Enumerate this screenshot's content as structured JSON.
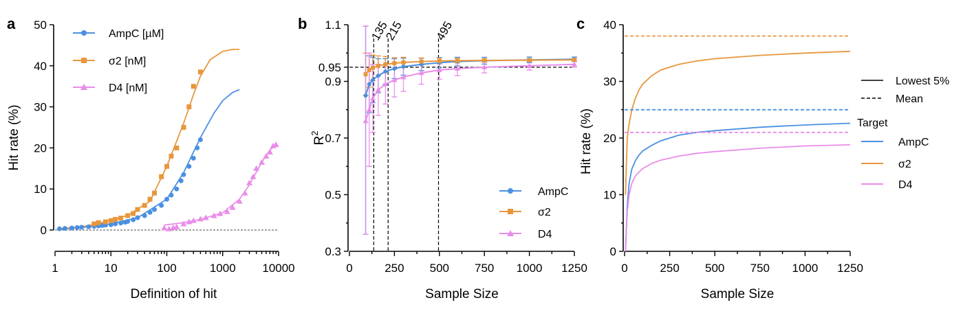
{
  "colors": {
    "ampc": "#4a90e2",
    "s2": "#e8963c",
    "d4": "#e98ce9",
    "axis": "#000000"
  },
  "chart_data": [
    {
      "panel": "a",
      "type": "scatter",
      "xscale": "log",
      "xlim": [
        1,
        10000
      ],
      "ylim": [
        0,
        50
      ],
      "xticks": [
        "1",
        "10",
        "100",
        "1000",
        "10000"
      ],
      "yticks": [
        "0",
        "10",
        "20",
        "30",
        "40",
        "50"
      ],
      "xlabel": "Definition of hit",
      "ylabel": "Hit rate (%)",
      "legend": {
        "position": "top-left",
        "entries": [
          "AmpC [µM]",
          "σ2 [nM]",
          "D4 [nM]"
        ]
      },
      "series": [
        {
          "name": "AmpC [µM]",
          "x": [
            1.2,
            1.5,
            2,
            2.5,
            3,
            4,
            5,
            6,
            7,
            8,
            10,
            12,
            15,
            18,
            20,
            25,
            30,
            40,
            50,
            60,
            80,
            100,
            120,
            150,
            180,
            200,
            250,
            300,
            350,
            400
          ],
          "y": [
            0.3,
            0.4,
            0.5,
            0.6,
            0.7,
            0.8,
            0.9,
            1.0,
            1.1,
            1.2,
            1.3,
            1.5,
            1.7,
            1.9,
            2.1,
            2.5,
            3.0,
            3.5,
            4.3,
            5.0,
            6.0,
            7.5,
            8.5,
            10.0,
            12.0,
            13.5,
            15.5,
            17.5,
            20.0,
            22.0
          ]
        },
        {
          "name": "σ2 [nM]",
          "x": [
            5,
            6,
            8,
            10,
            12,
            15,
            20,
            25,
            30,
            40,
            50,
            60,
            80,
            100,
            120,
            150,
            200,
            250,
            300,
            400
          ],
          "y": [
            1.5,
            1.8,
            2.0,
            2.3,
            2.6,
            2.9,
            3.5,
            4.0,
            5.0,
            6.0,
            7.5,
            9.0,
            13.0,
            15.5,
            18.0,
            20.0,
            25.0,
            30.0,
            35.0,
            38.5
          ]
        },
        {
          "name": "D4 [nM]",
          "x": [
            90,
            110,
            130,
            150,
            200,
            250,
            300,
            400,
            500,
            700,
            900,
            1200,
            1500,
            2000,
            2500,
            3000,
            3500,
            4000,
            5000,
            6000,
            7000,
            8000,
            9000
          ],
          "y": [
            0.5,
            0.3,
            0.6,
            0.8,
            1.5,
            2.0,
            2.3,
            2.7,
            3.0,
            3.5,
            4.0,
            4.5,
            5.5,
            7.0,
            9.0,
            11.5,
            13.0,
            15.0,
            16.5,
            18.0,
            19.0,
            20.5,
            20.8
          ]
        }
      ],
      "fits": [
        {
          "series": "AmpC [µM]",
          "x": [
            1.2,
            3,
            10,
            30,
            100,
            200,
            400,
            700,
            1000,
            1500,
            2000
          ],
          "y": [
            0.2,
            0.6,
            1.5,
            3.0,
            7.5,
            14.0,
            22.5,
            28.5,
            31.5,
            33.5,
            34.2
          ]
        },
        {
          "series": "σ2 [nM]",
          "x": [
            1.2,
            3,
            5,
            10,
            20,
            50,
            100,
            200,
            300,
            400,
            600,
            1000,
            1500,
            2000
          ],
          "y": [
            0.3,
            0.8,
            1.3,
            2.4,
            3.6,
            7.0,
            15.5,
            26.0,
            33.0,
            37.5,
            41.5,
            43.5,
            44.0,
            44.0
          ]
        },
        {
          "series": "D4 [nM]",
          "x": [
            90,
            200,
            400,
            1000,
            2000,
            3000,
            5000,
            7000,
            9000
          ],
          "y": [
            1.2,
            1.8,
            2.6,
            4.2,
            7.5,
            11.0,
            16.5,
            19.5,
            20.8
          ]
        }
      ]
    },
    {
      "panel": "b",
      "type": "line",
      "xlim": [
        0,
        1250
      ],
      "ylim": [
        0.3,
        1.1
      ],
      "xticks": [
        "0",
        "250",
        "500",
        "750",
        "1000",
        "1250"
      ],
      "yticks": [
        "0.3",
        "0.5",
        "0.7",
        "0.9",
        "0.95",
        "1.1"
      ],
      "xlabel": "Sample Size",
      "ylabel": "R",
      "ylabel_sup": "2",
      "reference_lines": {
        "h": [
          0.95
        ],
        "h_label": "0.95",
        "v": [
          135,
          215,
          495
        ],
        "v_labels": [
          "135",
          "215",
          "495"
        ]
      },
      "legend": {
        "position": "bottom-right",
        "entries": [
          "AmpC",
          "σ2",
          "D4"
        ]
      },
      "series": [
        {
          "name": "AmpC",
          "x": [
            90,
            110,
            130,
            160,
            200,
            250,
            300,
            400,
            500,
            600,
            750,
            1000,
            1250
          ],
          "y": [
            0.85,
            0.89,
            0.905,
            0.92,
            0.935,
            0.945,
            0.952,
            0.96,
            0.966,
            0.97,
            0.973,
            0.976,
            0.978
          ],
          "err": [
            0.49,
            0.1,
            0.08,
            0.06,
            0.045,
            0.035,
            0.03,
            0.022,
            0.018,
            0.015,
            0.012,
            0.01,
            0.008
          ]
        },
        {
          "name": "σ2",
          "x": [
            90,
            110,
            130,
            160,
            200,
            250,
            300,
            400,
            500,
            600,
            750,
            1000,
            1250
          ],
          "y": [
            0.925,
            0.94,
            0.948,
            0.955,
            0.96,
            0.964,
            0.967,
            0.97,
            0.972,
            0.973,
            0.974,
            0.975,
            0.976
          ],
          "err": [
            0.075,
            0.06,
            0.045,
            0.035,
            0.028,
            0.02,
            0.018,
            0.013,
            0.01,
            0.008,
            0.006,
            0.005,
            0.004
          ]
        },
        {
          "name": "D4",
          "x": [
            90,
            110,
            130,
            160,
            200,
            250,
            300,
            400,
            500,
            600,
            750,
            1000,
            1250
          ],
          "y": [
            0.76,
            0.8,
            0.84,
            0.87,
            0.89,
            0.905,
            0.915,
            0.93,
            0.94,
            0.945,
            0.95,
            0.955,
            0.96
          ],
          "err": [
            0.4,
            0.2,
            0.12,
            0.09,
            0.07,
            0.06,
            0.05,
            0.04,
            0.032,
            0.025,
            0.02,
            0.015,
            0.01
          ]
        }
      ]
    },
    {
      "panel": "c",
      "type": "line",
      "xlim": [
        0,
        1250
      ],
      "ylim": [
        0,
        40
      ],
      "xticks": [
        "0",
        "250",
        "500",
        "750",
        "1000",
        "1250"
      ],
      "yticks": [
        "0",
        "10",
        "20",
        "30",
        "40"
      ],
      "xlabel": "Sample Size",
      "ylabel": "Hit rate (%)",
      "legend": {
        "position": "right",
        "style_entries": [
          "Lowest 5%",
          "Mean"
        ],
        "target_title": "Target",
        "entries": [
          "AmpC",
          "σ2",
          "D4"
        ]
      },
      "series": [
        {
          "name": "AmpC",
          "style": "Lowest 5%",
          "x": [
            5,
            15,
            25,
            40,
            60,
            80,
            100,
            150,
            200,
            300,
            400,
            500,
            750,
            1000,
            1250
          ],
          "y": [
            0,
            8,
            12,
            14.5,
            16,
            17,
            17.7,
            18.7,
            19.5,
            20.5,
            21,
            21.3,
            21.9,
            22.3,
            22.6
          ]
        },
        {
          "name": "σ2",
          "style": "Lowest 5%",
          "x": [
            5,
            15,
            25,
            40,
            60,
            80,
            100,
            150,
            200,
            300,
            400,
            500,
            750,
            1000,
            1250
          ],
          "y": [
            10,
            20,
            22.5,
            25,
            27,
            28.5,
            29.5,
            31,
            32,
            33,
            33.6,
            34,
            34.6,
            35,
            35.3
          ]
        },
        {
          "name": "D4",
          "style": "Lowest 5%",
          "x": [
            5,
            15,
            25,
            40,
            60,
            80,
            100,
            150,
            200,
            300,
            400,
            500,
            750,
            1000,
            1250
          ],
          "y": [
            0,
            7,
            10,
            12,
            13.3,
            14,
            14.6,
            15.5,
            16.1,
            16.8,
            17.3,
            17.6,
            18.2,
            18.6,
            18.8
          ]
        },
        {
          "name": "AmpC",
          "style": "Mean",
          "x": [
            0,
            1250
          ],
          "y": [
            25,
            25
          ]
        },
        {
          "name": "σ2",
          "style": "Mean",
          "x": [
            0,
            1250
          ],
          "y": [
            38,
            38
          ]
        },
        {
          "name": "D4",
          "style": "Mean",
          "x": [
            0,
            1250
          ],
          "y": [
            21,
            21
          ]
        }
      ]
    }
  ]
}
